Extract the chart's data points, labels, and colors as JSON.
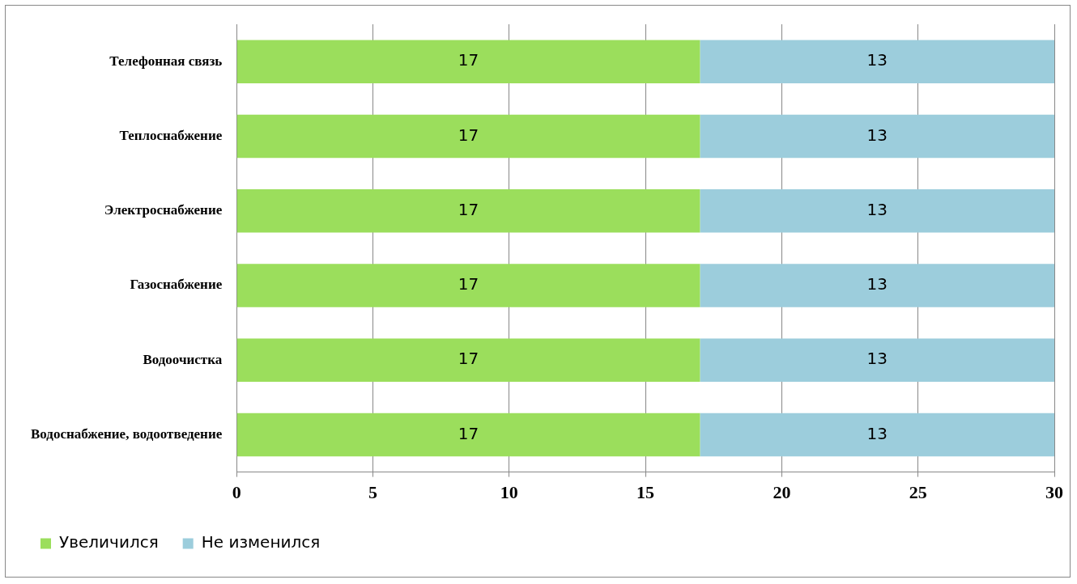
{
  "chart_data": {
    "type": "bar",
    "orientation": "horizontal",
    "stacked": true,
    "categories": [
      "Телефонная связь",
      "Теплоснабжение",
      "Электроснабжение",
      "Газоснабжение",
      "Водоочистка",
      "Водоснабжение, водоотведение"
    ],
    "series": [
      {
        "name": "Увеличился",
        "color": "#9bde5c",
        "values": [
          17,
          17,
          17,
          17,
          17,
          17
        ]
      },
      {
        "name": "Не изменился",
        "color": "#9ccddc",
        "values": [
          13,
          13,
          13,
          13,
          13,
          13
        ]
      }
    ],
    "xlim": [
      0,
      30
    ],
    "xticks": [
      0,
      5,
      10,
      15,
      20,
      25,
      30
    ],
    "grid": "x",
    "legend": "bottom",
    "data_labels": true
  }
}
